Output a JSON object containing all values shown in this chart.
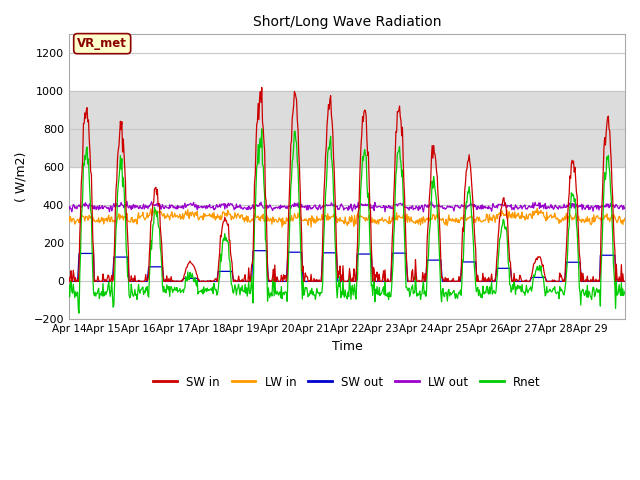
{
  "title": "Short/Long Wave Radiation",
  "xlabel": "Time",
  "ylabel": "( W/m2)",
  "ylim": [
    -200,
    1300
  ],
  "yticks": [
    -200,
    0,
    200,
    400,
    600,
    800,
    1000,
    1200
  ],
  "x_tick_labels": [
    "Apr 14",
    "Apr 15",
    "Apr 16",
    "Apr 17",
    "Apr 18",
    "Apr 19",
    "Apr 20",
    "Apr 21",
    "Apr 22",
    "Apr 23",
    "Apr 24",
    "Apr 25",
    "Apr 26",
    "Apr 27",
    "Apr 28",
    "Apr 29"
  ],
  "legend_labels": [
    "SW in",
    "LW in",
    "SW out",
    "LW out",
    "Rnet"
  ],
  "legend_colors": [
    "#cc0000",
    "#ff9900",
    "#0000cc",
    "#9900cc",
    "#00cc00"
  ],
  "annotation_text": "VR_met",
  "background_color": "#ffffff",
  "plot_bg_color": "#ffffff",
  "gray_band_low": 600,
  "gray_band_high": 1000,
  "gray_band_color": "#dcdcdc",
  "grid_color": "#c8c8c8",
  "n_days": 16,
  "sw_in_peaks": [
    920,
    800,
    480,
    100,
    330,
    1010,
    960,
    940,
    900,
    930,
    700,
    640,
    430,
    130,
    630,
    860
  ],
  "lw_in_base": 340,
  "lw_out_base": 390,
  "seed": 42
}
